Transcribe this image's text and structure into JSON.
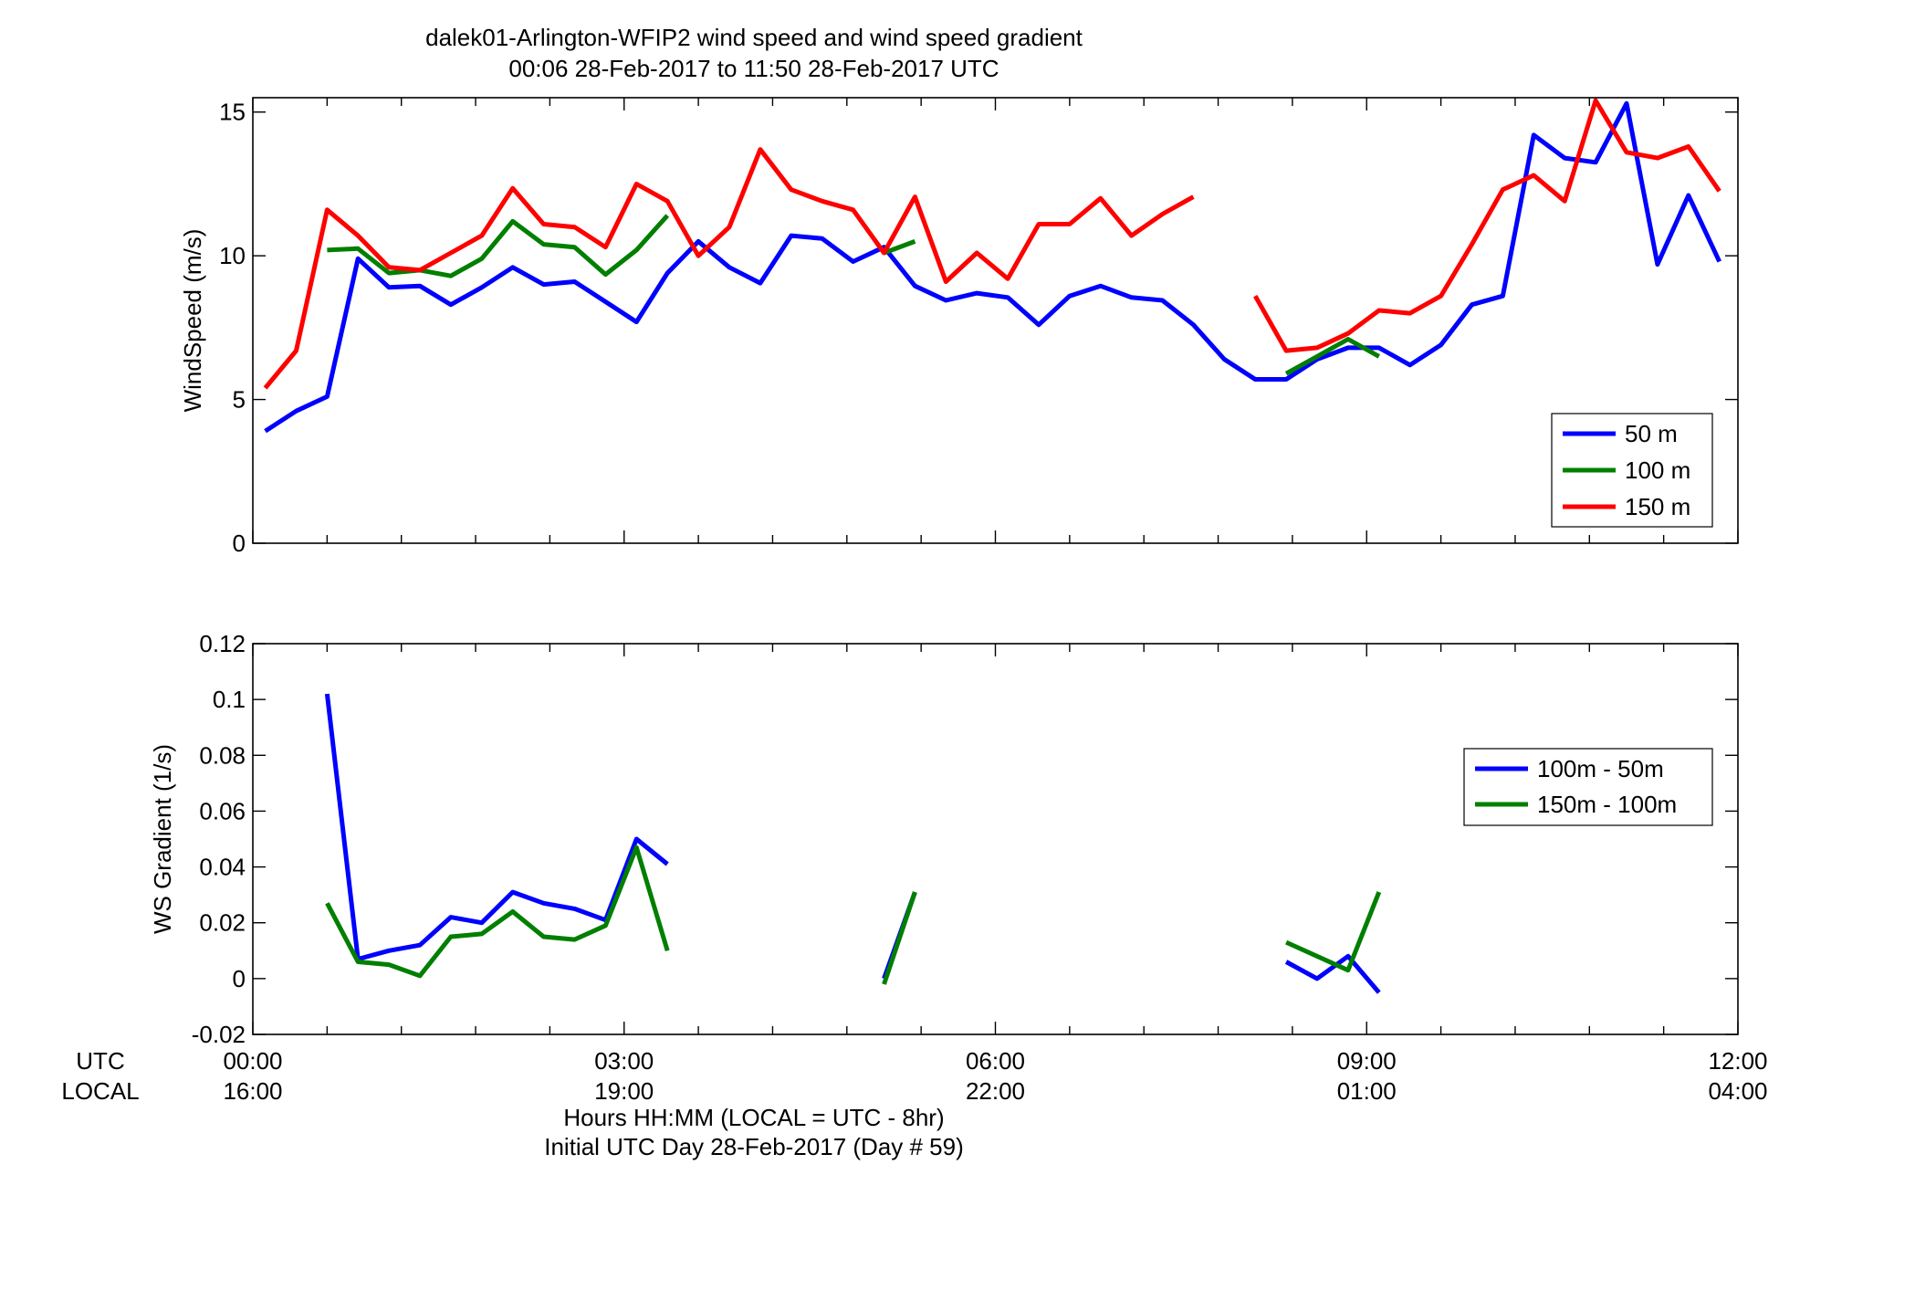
{
  "title": {
    "line1": "dalek01-Arlington-WFIP2  wind speed and wind speed gradient",
    "line2": "00:06 28-Feb-2017 to 11:50 28-Feb-2017  UTC"
  },
  "colors": {
    "blue": "#0000ff",
    "green": "#007f00",
    "red": "#ff0000",
    "axis": "#000000"
  },
  "xaxis": {
    "range_hours": [
      0,
      12
    ],
    "ticks_hours": [
      0,
      3,
      6,
      9,
      12
    ],
    "utc_row_label": "UTC",
    "local_row_label": "LOCAL",
    "utc_labels": [
      "00:00",
      "03:00",
      "06:00",
      "09:00",
      "12:00"
    ],
    "local_labels": [
      "16:00",
      "19:00",
      "22:00",
      "01:00",
      "04:00"
    ],
    "label_line1": "Hours HH:MM  (LOCAL = UTC - 8hr)",
    "label_line2": "Initial UTC Day 28-Feb-2017 (Day # 59)"
  },
  "chart_data": [
    {
      "type": "line",
      "ylabel": "WindSpeed (m/s)",
      "ylim": [
        0,
        15.5
      ],
      "yticks": [
        0,
        5,
        10,
        15
      ],
      "ytick_labels": [
        "0",
        "5",
        "10",
        "15"
      ],
      "xlim": [
        0,
        12
      ],
      "legend": {
        "placement": "bottom-right",
        "entries": [
          "50 m",
          "100 m",
          "150 m"
        ]
      },
      "series": [
        {
          "name": "50 m",
          "color": "blue",
          "segments": [
            [
              [
                0.1,
                3.9
              ],
              [
                0.35,
                4.6
              ],
              [
                0.6,
                5.1
              ],
              [
                0.85,
                9.9
              ],
              [
                1.1,
                8.9
              ],
              [
                1.35,
                8.95
              ],
              [
                1.6,
                8.3
              ],
              [
                1.85,
                8.9
              ],
              [
                2.1,
                9.6
              ],
              [
                2.35,
                9.0
              ],
              [
                2.6,
                9.1
              ],
              [
                2.85,
                8.4
              ],
              [
                3.1,
                7.7
              ],
              [
                3.35,
                9.4
              ],
              [
                3.6,
                10.5
              ],
              [
                3.85,
                9.6
              ],
              [
                4.1,
                9.05
              ],
              [
                4.35,
                10.7
              ],
              [
                4.6,
                10.6
              ],
              [
                4.85,
                9.8
              ],
              [
                5.1,
                10.3
              ],
              [
                5.35,
                8.95
              ],
              [
                5.6,
                8.45
              ],
              [
                5.85,
                8.7
              ],
              [
                6.1,
                8.55
              ],
              [
                6.35,
                7.6
              ],
              [
                6.6,
                8.6
              ],
              [
                6.85,
                8.95
              ],
              [
                7.1,
                8.55
              ],
              [
                7.35,
                8.45
              ],
              [
                7.6,
                7.6
              ],
              [
                7.85,
                6.4
              ],
              [
                8.1,
                5.7
              ],
              [
                8.35,
                5.7
              ],
              [
                8.6,
                6.4
              ],
              [
                8.85,
                6.8
              ],
              [
                9.1,
                6.8
              ],
              [
                9.35,
                6.2
              ],
              [
                9.6,
                6.9
              ],
              [
                9.85,
                8.3
              ],
              [
                10.1,
                8.6
              ],
              [
                10.35,
                14.2
              ],
              [
                10.6,
                13.4
              ],
              [
                10.85,
                13.25
              ],
              [
                11.1,
                15.3
              ],
              [
                11.35,
                9.7
              ],
              [
                11.6,
                12.1
              ],
              [
                11.85,
                9.8
              ]
            ]
          ]
        },
        {
          "name": "100 m",
          "color": "green",
          "segments": [
            [
              [
                0.6,
                10.2
              ],
              [
                0.85,
                10.25
              ],
              [
                1.1,
                9.4
              ],
              [
                1.35,
                9.5
              ],
              [
                1.6,
                9.3
              ],
              [
                1.85,
                9.9
              ],
              [
                2.1,
                11.2
              ],
              [
                2.35,
                10.4
              ],
              [
                2.6,
                10.3
              ],
              [
                2.85,
                9.35
              ],
              [
                3.1,
                10.2
              ],
              [
                3.35,
                11.4
              ]
            ],
            [
              [
                5.1,
                10.1
              ],
              [
                5.35,
                10.5
              ]
            ],
            [
              [
                8.35,
                5.9
              ],
              [
                8.6,
                6.5
              ],
              [
                8.85,
                7.1
              ],
              [
                9.1,
                6.5
              ]
            ]
          ]
        },
        {
          "name": "150 m",
          "color": "red",
          "segments": [
            [
              [
                0.1,
                5.4
              ],
              [
                0.35,
                6.7
              ],
              [
                0.6,
                11.6
              ],
              [
                0.85,
                10.7
              ],
              [
                1.1,
                9.6
              ],
              [
                1.35,
                9.5
              ],
              [
                1.6,
                10.1
              ],
              [
                1.85,
                10.7
              ],
              [
                2.1,
                12.35
              ],
              [
                2.35,
                11.1
              ],
              [
                2.6,
                11.0
              ],
              [
                2.85,
                10.3
              ],
              [
                3.1,
                12.5
              ],
              [
                3.35,
                11.9
              ],
              [
                3.6,
                10.0
              ],
              [
                3.85,
                11.0
              ],
              [
                4.1,
                13.7
              ],
              [
                4.35,
                12.3
              ],
              [
                4.6,
                11.9
              ],
              [
                4.85,
                11.6
              ],
              [
                5.1,
                10.1
              ],
              [
                5.35,
                12.05
              ],
              [
                5.6,
                9.1
              ],
              [
                5.85,
                10.1
              ],
              [
                6.1,
                9.2
              ],
              [
                6.35,
                11.1
              ],
              [
                6.6,
                11.1
              ],
              [
                6.85,
                12.0
              ],
              [
                7.1,
                10.7
              ],
              [
                7.35,
                11.45
              ],
              [
                7.6,
                12.05
              ]
            ],
            [
              [
                8.1,
                8.6
              ],
              [
                8.35,
                6.7
              ],
              [
                8.6,
                6.8
              ],
              [
                8.85,
                7.3
              ],
              [
                9.1,
                8.1
              ],
              [
                9.35,
                8.0
              ],
              [
                9.6,
                8.6
              ],
              [
                9.85,
                10.4
              ],
              [
                10.1,
                12.3
              ],
              [
                10.35,
                12.8
              ],
              [
                10.6,
                11.9
              ],
              [
                10.85,
                15.4
              ],
              [
                11.1,
                13.6
              ],
              [
                11.35,
                13.4
              ],
              [
                11.6,
                13.8
              ],
              [
                11.85,
                12.25
              ]
            ]
          ]
        }
      ]
    },
    {
      "type": "line",
      "ylabel": "WS Gradient (1/s)",
      "ylim": [
        -0.02,
        0.12
      ],
      "yticks": [
        -0.02,
        0,
        0.02,
        0.04,
        0.06,
        0.08,
        0.1,
        0.12
      ],
      "ytick_labels": [
        "-0.02",
        "0",
        "0.02",
        "0.04",
        "0.06",
        "0.08",
        "0.1",
        "0.12"
      ],
      "xlim": [
        0,
        12
      ],
      "legend": {
        "placement": "right",
        "entries": [
          "100m - 50m",
          "150m - 100m"
        ]
      },
      "series": [
        {
          "name": "100m - 50m",
          "color": "blue",
          "segments": [
            [
              [
                0.6,
                0.102
              ],
              [
                0.85,
                0.007
              ],
              [
                1.1,
                0.01
              ],
              [
                1.35,
                0.012
              ],
              [
                1.6,
                0.022
              ],
              [
                1.85,
                0.02
              ],
              [
                2.1,
                0.031
              ],
              [
                2.35,
                0.027
              ],
              [
                2.6,
                0.025
              ],
              [
                2.85,
                0.021
              ],
              [
                3.1,
                0.05
              ],
              [
                3.35,
                0.041
              ]
            ],
            [
              [
                5.1,
                0.0
              ],
              [
                5.35,
                0.031
              ]
            ],
            [
              [
                8.35,
                0.006
              ],
              [
                8.6,
                0.0
              ],
              [
                8.85,
                0.008
              ],
              [
                9.1,
                -0.005
              ]
            ]
          ]
        },
        {
          "name": "150m - 100m",
          "color": "green",
          "segments": [
            [
              [
                0.6,
                0.027
              ],
              [
                0.85,
                0.006
              ],
              [
                1.1,
                0.005
              ],
              [
                1.35,
                0.001
              ],
              [
                1.6,
                0.015
              ],
              [
                1.85,
                0.016
              ],
              [
                2.1,
                0.024
              ],
              [
                2.35,
                0.015
              ],
              [
                2.6,
                0.014
              ],
              [
                2.85,
                0.019
              ],
              [
                3.1,
                0.047
              ],
              [
                3.35,
                0.01
              ]
            ],
            [
              [
                5.1,
                -0.002
              ],
              [
                5.35,
                0.031
              ]
            ],
            [
              [
                8.35,
                0.013
              ],
              [
                8.85,
                0.003
              ],
              [
                9.1,
                0.031
              ]
            ]
          ]
        }
      ]
    }
  ]
}
